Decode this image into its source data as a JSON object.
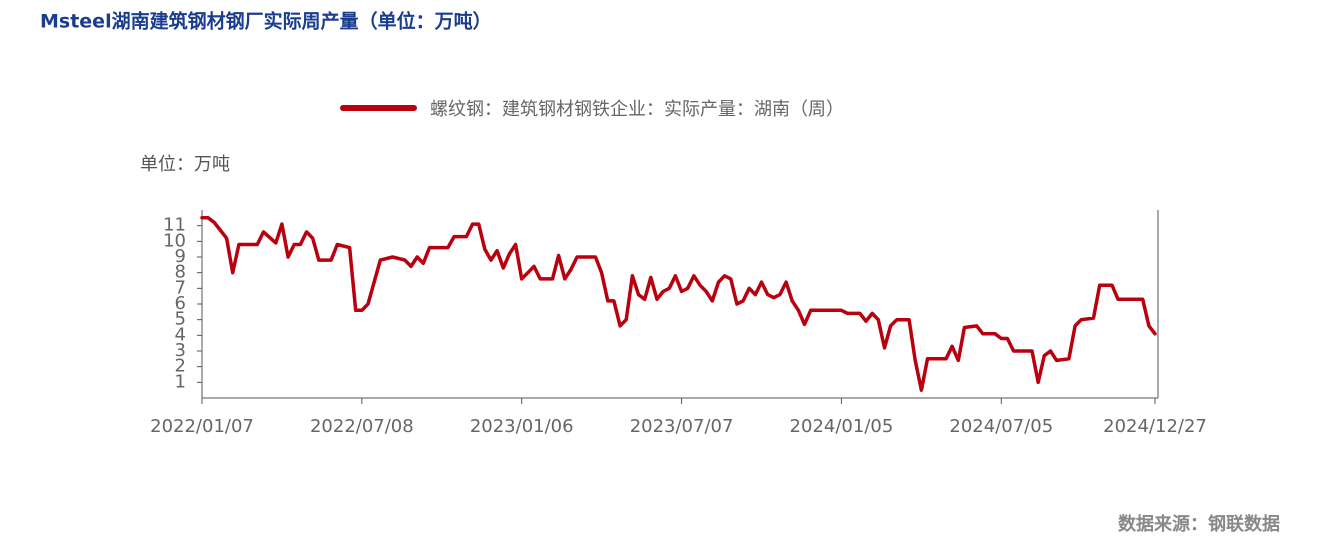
{
  "chart_data": {
    "type": "line",
    "title": "Msteel湖南建筑钢材钢厂实际周产量（单位：万吨）",
    "unit_label": "单位：万吨",
    "source": "数据来源：钢联数据",
    "x": [
      "2022/01/07",
      "2022/01/14",
      "2022/01/21",
      "2022/02/04",
      "2022/02/11",
      "2022/02/18",
      "2022/03/11",
      "2022/03/18",
      "2022/04/01",
      "2022/04/08",
      "2022/04/15",
      "2022/04/22",
      "2022/04/29",
      "2022/05/06",
      "2022/05/13",
      "2022/05/20",
      "2022/06/03",
      "2022/06/10",
      "2022/06/24",
      "2022/07/01",
      "2022/07/08",
      "2022/07/15",
      "2022/07/29",
      "2022/08/12",
      "2022/08/26",
      "2022/09/02",
      "2022/09/09",
      "2022/09/16",
      "2022/09/23",
      "2022/10/14",
      "2022/10/21",
      "2022/11/04",
      "2022/11/11",
      "2022/11/18",
      "2022/11/25",
      "2022/12/02",
      "2022/12/09",
      "2022/12/16",
      "2022/12/23",
      "2022/12/30",
      "2023/01/06",
      "2023/01/13",
      "2023/01/20",
      "2023/01/27",
      "2023/02/10",
      "2023/02/17",
      "2023/02/24",
      "2023/03/03",
      "2023/03/10",
      "2023/03/31",
      "2023/04/07",
      "2023/04/14",
      "2023/04/21",
      "2023/04/28",
      "2023/05/05",
      "2023/05/12",
      "2023/05/19",
      "2023/05/26",
      "2023/06/02",
      "2023/06/09",
      "2023/06/16",
      "2023/06/23",
      "2023/06/30",
      "2023/07/07",
      "2023/07/14",
      "2023/07/21",
      "2023/07/28",
      "2023/08/04",
      "2023/08/11",
      "2023/08/18",
      "2023/08/25",
      "2023/09/01",
      "2023/09/08",
      "2023/09/15",
      "2023/09/22",
      "2023/09/29",
      "2023/10/06",
      "2023/10/13",
      "2023/10/20",
      "2023/10/27",
      "2023/11/03",
      "2023/11/10",
      "2023/11/17",
      "2023/11/24",
      "2023/12/01",
      "2024/01/05",
      "2024/01/12",
      "2024/01/26",
      "2024/02/02",
      "2024/02/09",
      "2024/02/16",
      "2024/02/23",
      "2024/03/01",
      "2024/03/08",
      "2024/03/22",
      "2024/03/29",
      "2024/04/05",
      "2024/04/12",
      "2024/05/03",
      "2024/05/10",
      "2024/05/17",
      "2024/05/24",
      "2024/06/07",
      "2024/06/14",
      "2024/06/28",
      "2024/07/05",
      "2024/07/12",
      "2024/07/19",
      "2024/08/09",
      "2024/08/16",
      "2024/08/23",
      "2024/08/30",
      "2024/09/06",
      "2024/09/20",
      "2024/09/27",
      "2024/10/04",
      "2024/10/18",
      "2024/10/25",
      "2024/11/08",
      "2024/11/15",
      "2024/12/13",
      "2024/12/20",
      "2024/12/27"
    ],
    "series": [
      {
        "name": "螺纹钢：建筑钢材钢铁企业：实际产量：湖南（周）",
        "color": "#b8000f",
        "values": [
          11.5,
          11.5,
          11.2,
          10.2,
          8.0,
          9.8,
          9.8,
          10.6,
          9.9,
          11.1,
          9.0,
          9.8,
          9.8,
          10.6,
          10.2,
          8.8,
          8.8,
          9.8,
          9.6,
          5.6,
          5.6,
          6.0,
          8.8,
          9.0,
          8.8,
          8.4,
          9.0,
          8.6,
          9.6,
          9.6,
          10.3,
          10.3,
          11.1,
          11.1,
          9.5,
          8.8,
          9.4,
          8.3,
          9.2,
          9.8,
          7.6,
          8.0,
          8.4,
          7.6,
          7.6,
          9.1,
          7.6,
          8.2,
          9.0,
          9.0,
          8.0,
          6.2,
          6.2,
          4.6,
          5.0,
          7.8,
          6.6,
          6.3,
          7.7,
          6.3,
          6.8,
          7.0,
          7.8,
          6.8,
          7.0,
          7.8,
          7.2,
          6.8,
          6.2,
          7.4,
          7.8,
          7.6,
          6.0,
          6.2,
          7.0,
          6.6,
          7.4,
          6.6,
          6.4,
          6.6,
          7.4,
          6.2,
          5.6,
          4.7,
          5.6,
          5.6,
          5.4,
          5.4,
          4.9,
          5.4,
          5.0,
          3.2,
          4.6,
          5.0,
          5.0,
          2.4,
          0.5,
          2.5,
          2.5,
          3.3,
          2.4,
          4.5,
          4.6,
          4.1,
          4.1,
          3.8,
          3.8,
          3.0,
          3.0,
          1.0,
          2.7,
          3.0,
          2.4,
          2.5,
          4.6,
          5.0,
          5.1,
          7.2,
          7.2,
          6.3,
          6.3,
          4.6,
          4.1
        ]
      }
    ],
    "xlim": [
      "2022/01/07",
      "2024/12/27"
    ],
    "xticks": [
      "2022/01/07",
      "2022/07/08",
      "2023/01/06",
      "2023/07/07",
      "2024/01/05",
      "2024/07/05",
      "2024/12/27"
    ],
    "ylim": [
      0,
      12
    ],
    "yticks": [
      1,
      2,
      3,
      4,
      5,
      6,
      7,
      8,
      9,
      10,
      11
    ],
    "grid": false
  }
}
